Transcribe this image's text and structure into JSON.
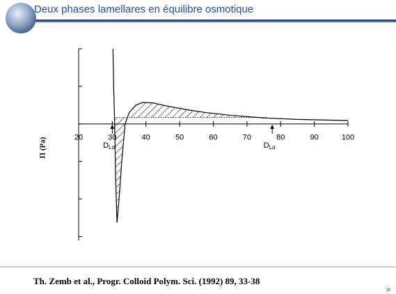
{
  "chart_data": {
    "type": "line",
    "title": "Deux phases lamellares en équilibre osmotique",
    "y_label": "Π (Pa)",
    "x": [
      30.2,
      30.4,
      30.7,
      31.0,
      31.4,
      32.0,
      32.8,
      33.8,
      35,
      37,
      39,
      42,
      46,
      52,
      58,
      65,
      75,
      85,
      100
    ],
    "series": [
      {
        "color": "#000000",
        "values": [
          2.0,
          1.0,
          0,
          -1.5,
          -2.63,
          -2.0,
          -1.0,
          0,
          0.3,
          0.5,
          0.57,
          0.56,
          0.48,
          0.38,
          0.3,
          0.23,
          0.16,
          0.12,
          0.09
        ]
      }
    ],
    "tie_line": {
      "x": [
        30.6,
        76
      ],
      "value": 0.17
    },
    "xlim": [
      20,
      100
    ],
    "xticks": [
      20,
      30,
      40,
      50,
      60,
      70,
      80,
      90,
      100
    ],
    "ylim": [
      -3.1,
      2
    ],
    "yticks": [
      -3,
      -2,
      -1,
      0,
      1,
      2
    ],
    "annotations": [
      {
        "text": "D",
        "sub": "Lα'",
        "x": 30
      },
      {
        "text": "D",
        "sub": "Lα",
        "x": 77.5
      }
    ],
    "citation": "Th. Zemb et al., Progr. Colloid Polym. Sci. (1992) 89, 33-38",
    "page_number": "30"
  }
}
